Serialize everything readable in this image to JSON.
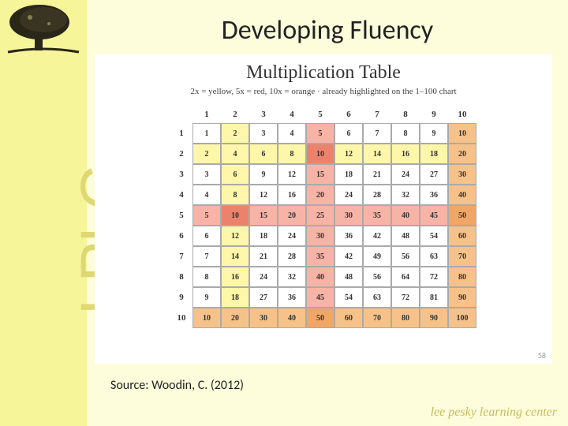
{
  "sidebar": {
    "vertical_text": "LPLC"
  },
  "title": "Developing Fluency",
  "chart": {
    "heading": "Multiplication Table",
    "subheading": "2x = yellow, 5x = red, 10x = orange · already highlighted on the 1–100 chart",
    "col_headers": [
      "1",
      "2",
      "3",
      "4",
      "5",
      "6",
      "7",
      "8",
      "9",
      "10"
    ],
    "row_headers": [
      "1",
      "2",
      "3",
      "4",
      "5",
      "6",
      "7",
      "8",
      "9",
      "10"
    ],
    "rows": [
      [
        "1",
        "2",
        "3",
        "4",
        "5",
        "6",
        "7",
        "8",
        "9",
        "10"
      ],
      [
        "2",
        "4",
        "6",
        "8",
        "10",
        "12",
        "14",
        "16",
        "18",
        "20"
      ],
      [
        "3",
        "6",
        "9",
        "12",
        "15",
        "18",
        "21",
        "24",
        "27",
        "30"
      ],
      [
        "4",
        "8",
        "12",
        "16",
        "20",
        "24",
        "28",
        "32",
        "36",
        "40"
      ],
      [
        "5",
        "10",
        "15",
        "20",
        "25",
        "30",
        "35",
        "40",
        "45",
        "50"
      ],
      [
        "6",
        "12",
        "18",
        "24",
        "30",
        "36",
        "42",
        "48",
        "54",
        "60"
      ],
      [
        "7",
        "14",
        "21",
        "28",
        "35",
        "42",
        "49",
        "56",
        "63",
        "70"
      ],
      [
        "8",
        "16",
        "24",
        "32",
        "40",
        "48",
        "56",
        "64",
        "72",
        "80"
      ],
      [
        "9",
        "18",
        "27",
        "36",
        "45",
        "54",
        "63",
        "72",
        "81",
        "90"
      ],
      [
        "10",
        "20",
        "30",
        "40",
        "50",
        "60",
        "70",
        "80",
        "90",
        "100"
      ]
    ],
    "colors": {
      "yellow": "#fef6a8",
      "red": "#f7b3a6",
      "orange": "#f7c28a",
      "dkred": "#ec826b",
      "dkorange": "#f0a666"
    }
  },
  "source": "Source: Woodin, C. (2012)",
  "footer": "lee pesky learning center",
  "slide_num": "58"
}
